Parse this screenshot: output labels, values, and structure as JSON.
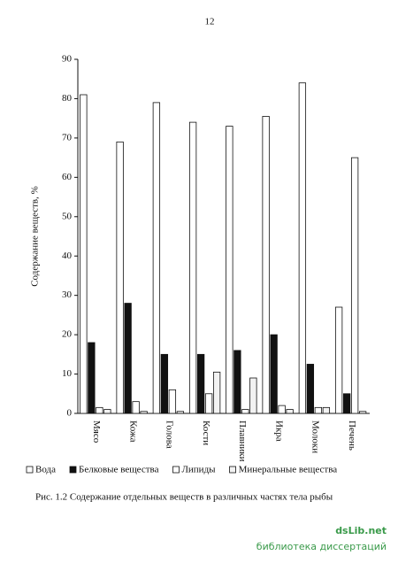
{
  "page_number": "12",
  "chart_data": {
    "type": "bar",
    "y_label": "Содержание веществ, %",
    "categories": [
      "Мясо",
      "Кожа",
      "Голова",
      "Кости",
      "Плавники",
      "Икра",
      "Молоки",
      "Печень"
    ],
    "series": [
      {
        "name": "Вода",
        "color": "#ffffff",
        "values": [
          81,
          69,
          79,
          74,
          73,
          75.5,
          84,
          27
        ]
      },
      {
        "name": "Белковые вещества",
        "color": "#111111",
        "values": [
          18,
          28,
          15,
          15,
          16,
          20,
          12.5,
          5
        ]
      },
      {
        "name": "Липиды",
        "color": "#ffffff",
        "values": [
          1.5,
          3,
          6,
          5,
          1,
          2,
          1.5,
          65
        ]
      },
      {
        "name": "Минеральные вещества",
        "color": "#f2f2f2",
        "values": [
          1,
          0.5,
          0.5,
          10.5,
          9,
          1,
          1.5,
          0.5
        ]
      }
    ],
    "ylim": [
      0,
      90
    ],
    "yticks": [
      0,
      10,
      20,
      30,
      40,
      50,
      60,
      70,
      80,
      90
    ]
  },
  "caption": "Рис. 1.2 Содержание отдельных веществ в различных частях тела рыбы",
  "watermark": {
    "brand": "dsLib.net",
    "tagline": "библиотека диссертаций"
  }
}
